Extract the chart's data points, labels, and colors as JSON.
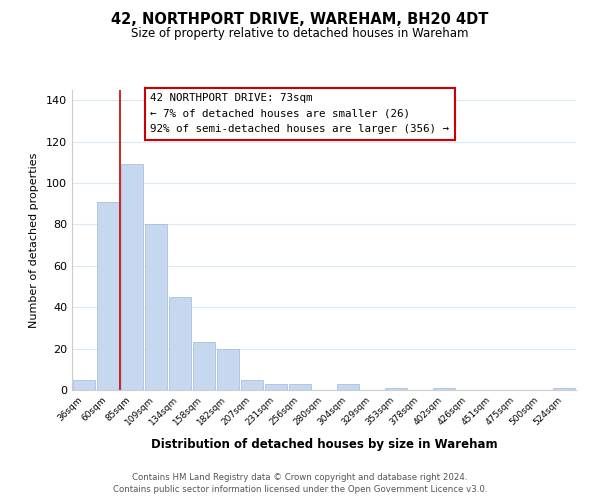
{
  "title": "42, NORTHPORT DRIVE, WAREHAM, BH20 4DT",
  "subtitle": "Size of property relative to detached houses in Wareham",
  "xlabel": "Distribution of detached houses by size in Wareham",
  "ylabel": "Number of detached properties",
  "bar_labels": [
    "36sqm",
    "60sqm",
    "85sqm",
    "109sqm",
    "134sqm",
    "158sqm",
    "182sqm",
    "207sqm",
    "231sqm",
    "256sqm",
    "280sqm",
    "304sqm",
    "329sqm",
    "353sqm",
    "378sqm",
    "402sqm",
    "426sqm",
    "451sqm",
    "475sqm",
    "500sqm",
    "524sqm"
  ],
  "bar_values": [
    5,
    91,
    109,
    80,
    45,
    23,
    20,
    5,
    3,
    3,
    0,
    3,
    0,
    1,
    0,
    1,
    0,
    0,
    0,
    0,
    1
  ],
  "bar_color": "#c5d8f0",
  "bar_edge_color": "#a0b8d8",
  "ylim": [
    0,
    145
  ],
  "yticks": [
    0,
    20,
    40,
    60,
    80,
    100,
    120,
    140
  ],
  "marker_color": "#cc0000",
  "annotation_title": "42 NORTHPORT DRIVE: 73sqm",
  "annotation_line1": "← 7% of detached houses are smaller (26)",
  "annotation_line2": "92% of semi-detached houses are larger (356) →",
  "annotation_box_color": "#ffffff",
  "annotation_box_edge": "#cc0000",
  "footer_line1": "Contains HM Land Registry data © Crown copyright and database right 2024.",
  "footer_line2": "Contains public sector information licensed under the Open Government Licence v3.0.",
  "background_color": "#ffffff",
  "grid_color": "#d8e8f5"
}
